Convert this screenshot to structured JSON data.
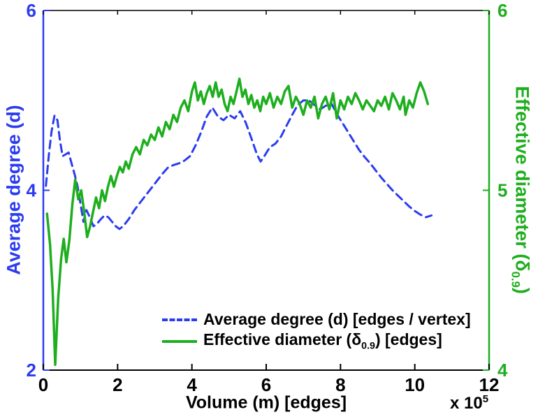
{
  "chart_data": {
    "type": "line",
    "title": "",
    "xlabel": "Volume (m) [edges]",
    "x_multiplier": {
      "base": "x 10",
      "exponent": "5"
    },
    "xlim": [
      0,
      12
    ],
    "x_ticks": [
      0,
      2,
      4,
      6,
      8,
      10,
      12
    ],
    "grid": false,
    "legend_position": "lower-center-right",
    "left_axis": {
      "label": "Average degree (d)",
      "ticks": [
        2,
        4,
        6
      ],
      "lim": [
        2,
        6
      ],
      "color": "#2b3cf0"
    },
    "right_axis": {
      "label_prefix": "Effective diameter (δ",
      "label_sub": "0.9",
      "label_suffix": ")",
      "ticks": [
        4,
        5,
        6
      ],
      "lim": [
        4,
        6
      ],
      "color": "#1eae1e"
    },
    "series": [
      {
        "name": "Average degree (d) [edges / vertex]",
        "axis": "left",
        "style": "dashed",
        "color": "#2b3cf0",
        "points": [
          [
            0.07,
            4.05
          ],
          [
            0.15,
            4.4
          ],
          [
            0.22,
            4.65
          ],
          [
            0.3,
            4.83
          ],
          [
            0.38,
            4.78
          ],
          [
            0.45,
            4.55
          ],
          [
            0.52,
            4.38
          ],
          [
            0.6,
            4.4
          ],
          [
            0.68,
            4.42
          ],
          [
            0.76,
            4.3
          ],
          [
            0.84,
            4.18
          ],
          [
            0.92,
            4.05
          ],
          [
            1.0,
            3.85
          ],
          [
            1.08,
            3.65
          ],
          [
            1.16,
            3.78
          ],
          [
            1.25,
            3.7
          ],
          [
            1.35,
            3.6
          ],
          [
            1.45,
            3.63
          ],
          [
            1.55,
            3.68
          ],
          [
            1.65,
            3.72
          ],
          [
            1.75,
            3.7
          ],
          [
            1.85,
            3.65
          ],
          [
            1.95,
            3.6
          ],
          [
            2.05,
            3.57
          ],
          [
            2.15,
            3.6
          ],
          [
            2.3,
            3.68
          ],
          [
            2.45,
            3.78
          ],
          [
            2.6,
            3.86
          ],
          [
            2.75,
            3.94
          ],
          [
            2.9,
            4.02
          ],
          [
            3.05,
            4.1
          ],
          [
            3.2,
            4.18
          ],
          [
            3.35,
            4.25
          ],
          [
            3.5,
            4.28
          ],
          [
            3.65,
            4.3
          ],
          [
            3.8,
            4.33
          ],
          [
            3.95,
            4.38
          ],
          [
            4.1,
            4.5
          ],
          [
            4.25,
            4.65
          ],
          [
            4.4,
            4.82
          ],
          [
            4.55,
            4.92
          ],
          [
            4.7,
            4.82
          ],
          [
            4.85,
            4.78
          ],
          [
            5.0,
            4.84
          ],
          [
            5.15,
            4.8
          ],
          [
            5.3,
            4.88
          ],
          [
            5.45,
            4.75
          ],
          [
            5.6,
            4.58
          ],
          [
            5.75,
            4.4
          ],
          [
            5.85,
            4.32
          ],
          [
            5.95,
            4.38
          ],
          [
            6.1,
            4.48
          ],
          [
            6.25,
            4.52
          ],
          [
            6.4,
            4.6
          ],
          [
            6.55,
            4.72
          ],
          [
            6.7,
            4.84
          ],
          [
            6.85,
            4.95
          ],
          [
            7.0,
            5.0
          ],
          [
            7.15,
            5.0
          ],
          [
            7.3,
            4.95
          ],
          [
            7.45,
            4.9
          ],
          [
            7.6,
            4.94
          ],
          [
            7.75,
            4.97
          ],
          [
            7.9,
            4.85
          ],
          [
            8.05,
            4.75
          ],
          [
            8.2,
            4.65
          ],
          [
            8.35,
            4.55
          ],
          [
            8.5,
            4.45
          ],
          [
            8.65,
            4.37
          ],
          [
            8.8,
            4.3
          ],
          [
            8.95,
            4.22
          ],
          [
            9.1,
            4.14
          ],
          [
            9.25,
            4.07
          ],
          [
            9.4,
            4.0
          ],
          [
            9.55,
            3.94
          ],
          [
            9.7,
            3.88
          ],
          [
            9.85,
            3.82
          ],
          [
            10.0,
            3.77
          ],
          [
            10.15,
            3.73
          ],
          [
            10.3,
            3.7
          ],
          [
            10.45,
            3.72
          ]
        ]
      },
      {
        "name_prefix": "Effective diameter (δ",
        "name_sub": "0.9",
        "name_suffix": ") [edges]",
        "axis": "right",
        "style": "solid",
        "color": "#1eae1e",
        "points": [
          [
            0.1,
            4.87
          ],
          [
            0.18,
            4.7
          ],
          [
            0.25,
            4.45
          ],
          [
            0.32,
            4.03
          ],
          [
            0.4,
            4.4
          ],
          [
            0.48,
            4.62
          ],
          [
            0.55,
            4.73
          ],
          [
            0.62,
            4.6
          ],
          [
            0.7,
            4.72
          ],
          [
            0.78,
            4.92
          ],
          [
            0.86,
            5.06
          ],
          [
            0.94,
            4.95
          ],
          [
            1.02,
            5.0
          ],
          [
            1.1,
            4.88
          ],
          [
            1.18,
            4.74
          ],
          [
            1.26,
            4.8
          ],
          [
            1.34,
            4.88
          ],
          [
            1.42,
            4.96
          ],
          [
            1.5,
            4.9
          ],
          [
            1.58,
            5.0
          ],
          [
            1.66,
            4.94
          ],
          [
            1.74,
            5.02
          ],
          [
            1.82,
            5.08
          ],
          [
            1.9,
            5.02
          ],
          [
            1.98,
            5.08
          ],
          [
            2.06,
            5.13
          ],
          [
            2.14,
            5.1
          ],
          [
            2.22,
            5.16
          ],
          [
            2.3,
            5.12
          ],
          [
            2.4,
            5.2
          ],
          [
            2.5,
            5.24
          ],
          [
            2.6,
            5.2
          ],
          [
            2.7,
            5.28
          ],
          [
            2.8,
            5.25
          ],
          [
            2.9,
            5.31
          ],
          [
            3.0,
            5.28
          ],
          [
            3.1,
            5.35
          ],
          [
            3.2,
            5.3
          ],
          [
            3.3,
            5.38
          ],
          [
            3.4,
            5.34
          ],
          [
            3.5,
            5.42
          ],
          [
            3.6,
            5.38
          ],
          [
            3.7,
            5.46
          ],
          [
            3.8,
            5.5
          ],
          [
            3.9,
            5.44
          ],
          [
            4.0,
            5.55
          ],
          [
            4.08,
            5.6
          ],
          [
            4.16,
            5.5
          ],
          [
            4.24,
            5.55
          ],
          [
            4.32,
            5.48
          ],
          [
            4.4,
            5.54
          ],
          [
            4.48,
            5.58
          ],
          [
            4.56,
            5.52
          ],
          [
            4.64,
            5.6
          ],
          [
            4.72,
            5.52
          ],
          [
            4.8,
            5.56
          ],
          [
            4.88,
            5.48
          ],
          [
            4.96,
            5.44
          ],
          [
            5.04,
            5.52
          ],
          [
            5.12,
            5.48
          ],
          [
            5.2,
            5.55
          ],
          [
            5.28,
            5.62
          ],
          [
            5.36,
            5.52
          ],
          [
            5.44,
            5.56
          ],
          [
            5.52,
            5.48
          ],
          [
            5.6,
            5.53
          ],
          [
            5.68,
            5.46
          ],
          [
            5.76,
            5.5
          ],
          [
            5.84,
            5.44
          ],
          [
            5.92,
            5.52
          ],
          [
            6.0,
            5.48
          ],
          [
            6.1,
            5.54
          ],
          [
            6.2,
            5.46
          ],
          [
            6.3,
            5.52
          ],
          [
            6.4,
            5.48
          ],
          [
            6.5,
            5.55
          ],
          [
            6.6,
            5.58
          ],
          [
            6.7,
            5.46
          ],
          [
            6.8,
            5.52
          ],
          [
            6.9,
            5.48
          ],
          [
            7.0,
            5.42
          ],
          [
            7.1,
            5.5
          ],
          [
            7.2,
            5.46
          ],
          [
            7.3,
            5.52
          ],
          [
            7.4,
            5.4
          ],
          [
            7.5,
            5.48
          ],
          [
            7.6,
            5.52
          ],
          [
            7.7,
            5.45
          ],
          [
            7.8,
            5.54
          ],
          [
            7.9,
            5.4
          ],
          [
            8.0,
            5.5
          ],
          [
            8.1,
            5.45
          ],
          [
            8.2,
            5.52
          ],
          [
            8.3,
            5.48
          ],
          [
            8.4,
            5.54
          ],
          [
            8.5,
            5.5
          ],
          [
            8.6,
            5.45
          ],
          [
            8.7,
            5.5
          ],
          [
            8.8,
            5.47
          ],
          [
            8.9,
            5.44
          ],
          [
            9.0,
            5.5
          ],
          [
            9.1,
            5.47
          ],
          [
            9.2,
            5.52
          ],
          [
            9.3,
            5.45
          ],
          [
            9.4,
            5.54
          ],
          [
            9.5,
            5.5
          ],
          [
            9.6,
            5.45
          ],
          [
            9.7,
            5.52
          ],
          [
            9.75,
            5.42
          ],
          [
            9.85,
            5.5
          ],
          [
            9.95,
            5.46
          ],
          [
            10.05,
            5.54
          ],
          [
            10.15,
            5.6
          ],
          [
            10.25,
            5.55
          ],
          [
            10.35,
            5.48
          ]
        ]
      }
    ]
  }
}
